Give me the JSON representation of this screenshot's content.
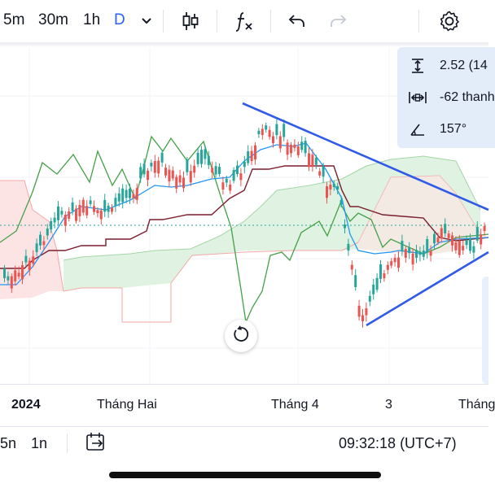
{
  "toolbar": {
    "timeframes": [
      {
        "label": "5m",
        "active": false
      },
      {
        "label": "30m",
        "active": false
      },
      {
        "label": "1h",
        "active": false
      },
      {
        "label": "D",
        "active": true
      }
    ],
    "icons": [
      "chevron-down-icon",
      "candlestick-icon",
      "indicators-icon",
      "undo-icon",
      "redo-icon",
      "settings-icon"
    ]
  },
  "measure": {
    "price_change": "2.52 (14",
    "bars": "-62 thanh",
    "angle": "157°"
  },
  "x_axis": {
    "labels": [
      "2024",
      "Tháng Hai",
      "Tháng 4",
      "3",
      "Tháng"
    ]
  },
  "bottom_bar": {
    "range_left": "5n",
    "range_1y": "1n",
    "time": "09:32:18 (UTC+7)"
  },
  "colors": {
    "accent": "#2962ff",
    "candle_up": "#26a69a",
    "candle_down": "#ef5350",
    "trendline": "#2f5be8",
    "tenkan": "#2196f3",
    "kijun": "#7b1f2f",
    "chikou": "#43a047",
    "cloud_bull": "#e0f2e1",
    "cloud_bear": "#fde4e4"
  }
}
